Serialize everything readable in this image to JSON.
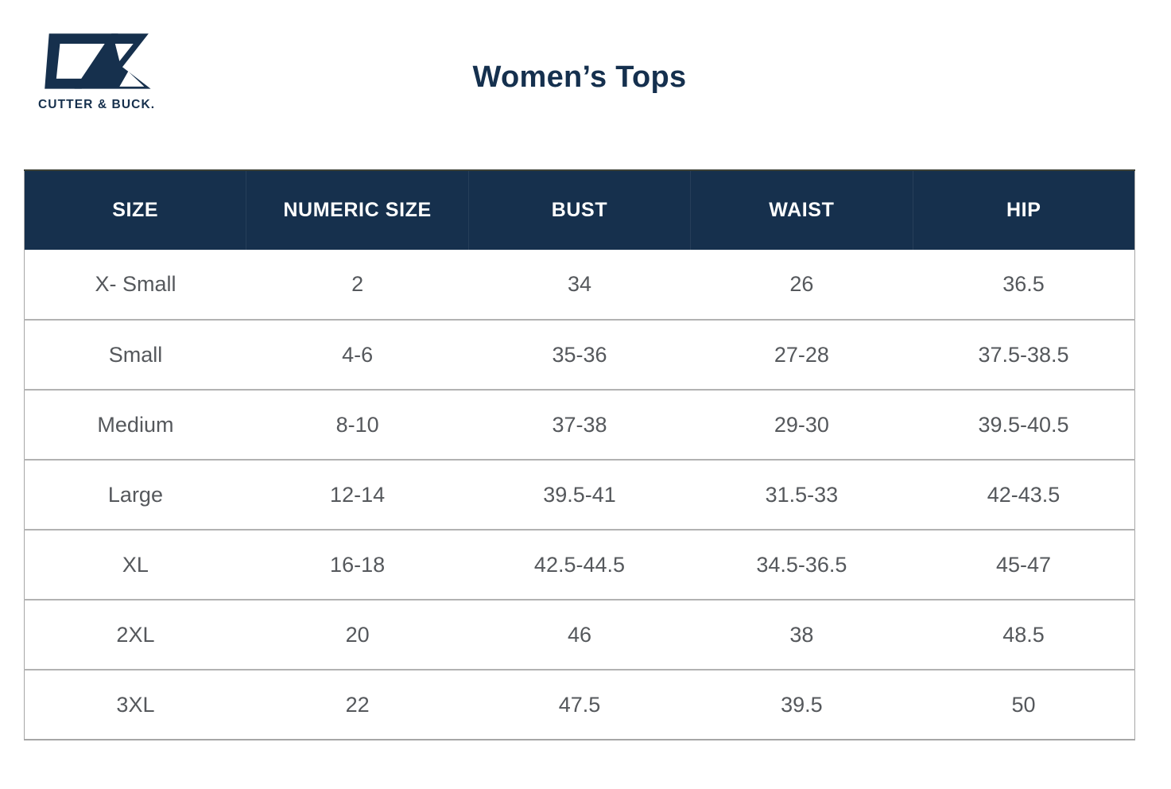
{
  "brand": {
    "logo_text": "CUTTER & BUCK.",
    "logo_mark": "cb-monogram",
    "navy": "#16304D"
  },
  "page": {
    "title": "Women’s Tops"
  },
  "chart_data": {
    "type": "table",
    "title": "Women’s Tops",
    "columns": [
      "SIZE",
      "NUMERIC SIZE",
      "BUST",
      "WAIST",
      "HIP"
    ],
    "rows": [
      [
        "X- Small",
        "2",
        "34",
        "26",
        "36.5"
      ],
      [
        "Small",
        "4-6",
        "35-36",
        "27-28",
        "37.5-38.5"
      ],
      [
        "Medium",
        "8-10",
        "37-38",
        "29-30",
        "39.5-40.5"
      ],
      [
        "Large",
        "12-14",
        "39.5-41",
        "31.5-33",
        "42-43.5"
      ],
      [
        "XL",
        "16-18",
        "42.5-44.5",
        "34.5-36.5",
        "45-47"
      ],
      [
        "2XL",
        "20",
        "46",
        "38",
        "48.5"
      ],
      [
        "3XL",
        "22",
        "47.5",
        "39.5",
        "50"
      ]
    ],
    "layout": {
      "header_background": "#16304D",
      "header_text_color": "#FFFFFF",
      "body_text_color": "#55585C",
      "row_border_color": "#B2B2B2",
      "header_top_border_color": "#3C4036",
      "grid": "horizontal-only"
    }
  }
}
